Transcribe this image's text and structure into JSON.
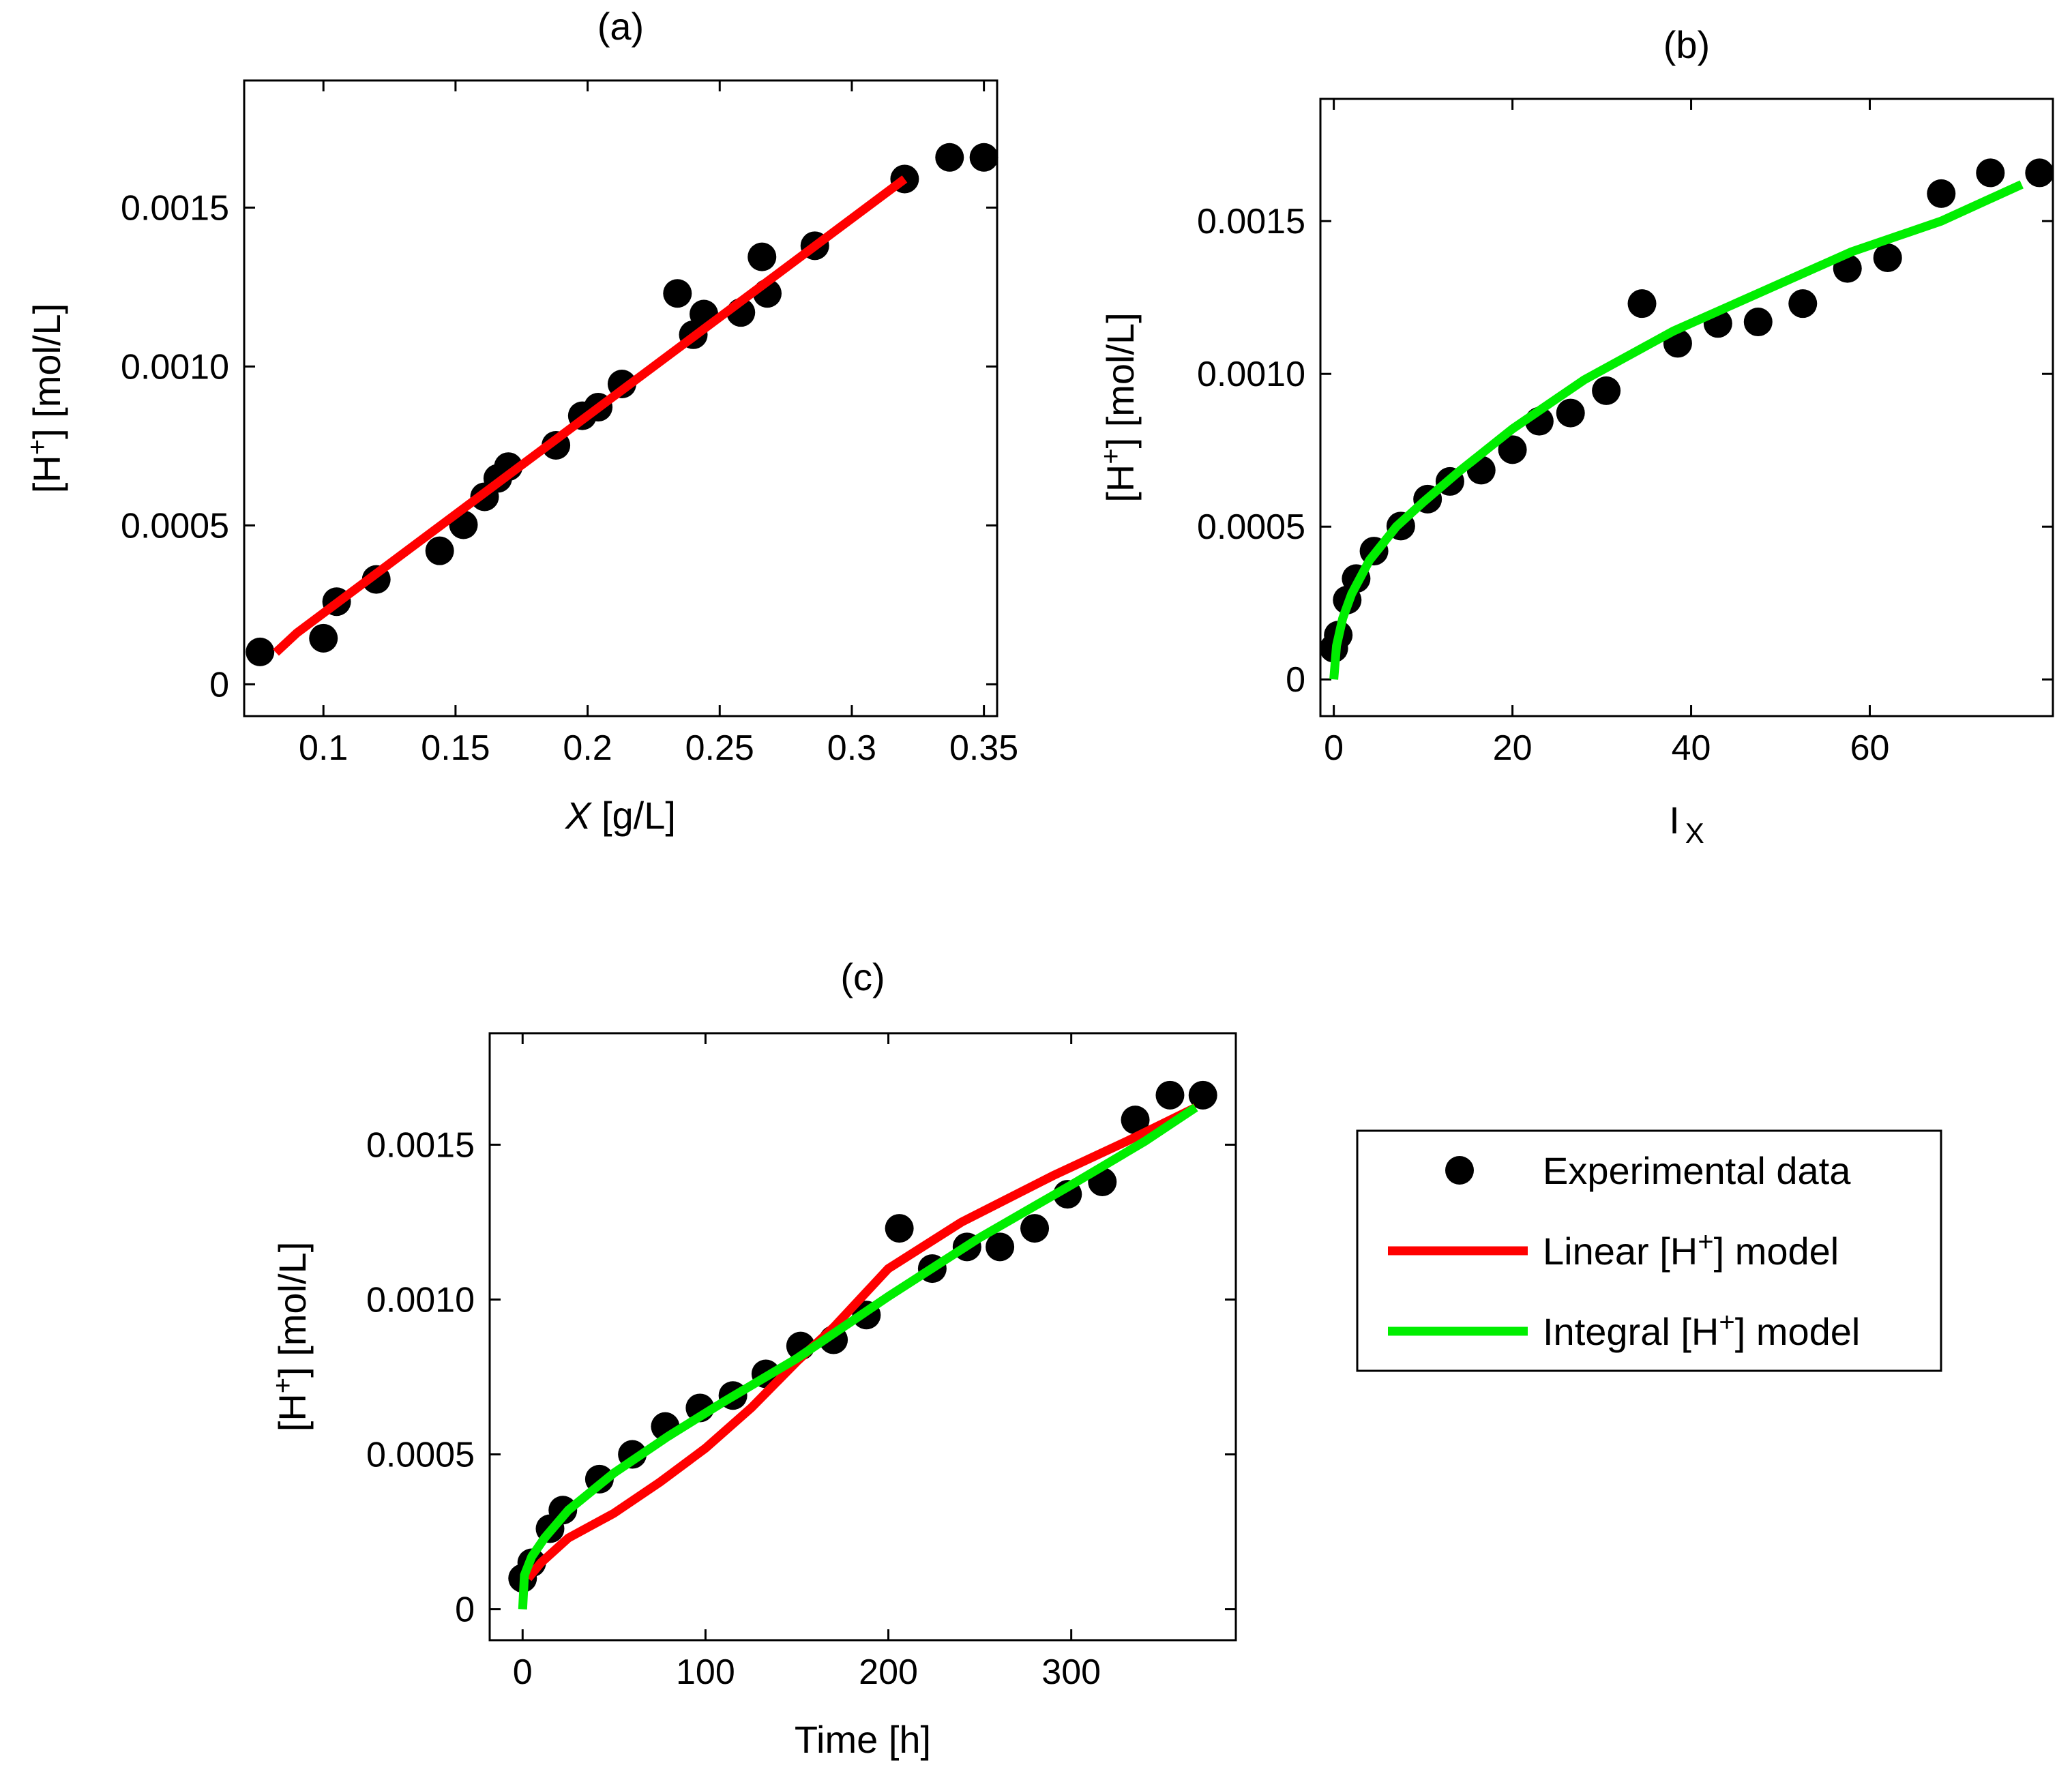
{
  "chart_data": [
    {
      "id": "a",
      "type": "scatter",
      "title": "(a)",
      "xlabel": "X [g/L]",
      "xlabel_main": "X",
      "xlabel_unit": "[g/L]",
      "ylabel": "[H+] [mol/L]",
      "xlim": [
        0.07,
        0.355
      ],
      "ylim": [
        -0.0001,
        0.0019
      ],
      "xticks": [
        0.1,
        0.15,
        0.2,
        0.25,
        0.3,
        0.35
      ],
      "xtick_labels": [
        "0.1",
        "0.15",
        "0.2",
        "0.25",
        "0.3",
        "0.35"
      ],
      "yticks": [
        0,
        0.0005,
        0.001,
        0.0015
      ],
      "ytick_labels": [
        "0",
        "0.0005",
        "0.0010",
        "0.0015"
      ],
      "scatter": {
        "name": "Experimental data",
        "points": [
          [
            0.076,
            0.000102
          ],
          [
            0.1,
            0.000145
          ],
          [
            0.105,
            0.00026
          ],
          [
            0.12,
            0.00033
          ],
          [
            0.144,
            0.00042
          ],
          [
            0.153,
            0.000502
          ],
          [
            0.161,
            0.00059
          ],
          [
            0.166,
            0.000648
          ],
          [
            0.17,
            0.000685
          ],
          [
            0.188,
            0.000752
          ],
          [
            0.198,
            0.000845
          ],
          [
            0.204,
            0.000872
          ],
          [
            0.213,
            0.000945
          ],
          [
            0.234,
            0.00123
          ],
          [
            0.24,
            0.0011
          ],
          [
            0.244,
            0.001165
          ],
          [
            0.258,
            0.00117
          ],
          [
            0.266,
            0.001345
          ],
          [
            0.268,
            0.00123
          ],
          [
            0.286,
            0.00138
          ],
          [
            0.32,
            0.00159
          ],
          [
            0.337,
            0.001658
          ],
          [
            0.35,
            0.001658
          ]
        ]
      },
      "series": [
        {
          "name": "Linear [H+] model",
          "color": "#ff0000",
          "points": [
            [
              0.082,
              0.0001
            ],
            [
              0.09,
              0.000162
            ],
            [
              0.32,
              0.00159
            ]
          ]
        }
      ]
    },
    {
      "id": "b",
      "type": "scatter",
      "title": "(b)",
      "xlabel": "I X",
      "xlabel_main": "I",
      "xlabel_sub": "X",
      "ylabel": "[H+] [mol/L]",
      "xlim": [
        -1.5,
        80.5
      ],
      "ylim": [
        -0.00012,
        0.0019
      ],
      "xticks": [
        0,
        20,
        40,
        60
      ],
      "xtick_labels": [
        "0",
        "20",
        "40",
        "60"
      ],
      "yticks": [
        0,
        0.0005,
        0.001,
        0.0015
      ],
      "ytick_labels": [
        "0",
        "0.0005",
        "0.0010",
        "0.0015"
      ],
      "scatter": {
        "name": "Experimental data",
        "points": [
          [
            0,
            0.000102
          ],
          [
            0.5,
            0.000145
          ],
          [
            1.5,
            0.00026
          ],
          [
            2.5,
            0.00033
          ],
          [
            4.5,
            0.00042
          ],
          [
            7.5,
            0.000502
          ],
          [
            10.5,
            0.00059
          ],
          [
            13,
            0.000648
          ],
          [
            16.5,
            0.000685
          ],
          [
            20,
            0.000752
          ],
          [
            23,
            0.000845
          ],
          [
            26.5,
            0.000872
          ],
          [
            30.5,
            0.000945
          ],
          [
            34.5,
            0.00123
          ],
          [
            38.5,
            0.0011
          ],
          [
            43,
            0.001165
          ],
          [
            47.5,
            0.00117
          ],
          [
            52.5,
            0.00123
          ],
          [
            57.5,
            0.001345
          ],
          [
            62,
            0.00138
          ],
          [
            68,
            0.00159
          ],
          [
            73.5,
            0.001658
          ],
          [
            79,
            0.001658
          ]
        ]
      },
      "series": [
        {
          "name": "Integral [H+] model",
          "color": "#00ee00",
          "points": [
            [
              0,
              0
            ],
            [
              0.3,
              0.00011
            ],
            [
              1,
              0.0002
            ],
            [
              2,
              0.00028
            ],
            [
              4,
              0.00039
            ],
            [
              7,
              0.0005
            ],
            [
              10,
              0.00058
            ],
            [
              14,
              0.00068
            ],
            [
              20,
              0.00082
            ],
            [
              28,
              0.00098
            ],
            [
              38,
              0.00114
            ],
            [
              48,
              0.00127
            ],
            [
              58,
              0.0014
            ],
            [
              68,
              0.0015
            ],
            [
              77,
              0.00162
            ]
          ]
        }
      ]
    },
    {
      "id": "c",
      "type": "scatter",
      "title": "(c)",
      "xlabel": "Time [h]",
      "ylabel": "[H+] [mol/L]",
      "xlim": [
        -18,
        390
      ],
      "ylim": [
        -0.0001,
        0.00186
      ],
      "xticks": [
        0,
        100,
        200,
        300
      ],
      "xtick_labels": [
        "0",
        "100",
        "200",
        "300"
      ],
      "yticks": [
        0,
        0.0005,
        0.001,
        0.0015
      ],
      "ytick_labels": [
        "0",
        "0.0005",
        "0.0010",
        "0.0015"
      ],
      "scatter": {
        "name": "Experimental data",
        "points": [
          [
            0,
            0.0001
          ],
          [
            5,
            0.00015
          ],
          [
            15,
            0.00026
          ],
          [
            22,
            0.00032
          ],
          [
            42,
            0.00042
          ],
          [
            60,
            0.0005
          ],
          [
            78,
            0.00059
          ],
          [
            97,
            0.00065
          ],
          [
            115,
            0.00069
          ],
          [
            133,
            0.00076
          ],
          [
            152,
            0.00085
          ],
          [
            170,
            0.00087
          ],
          [
            188,
            0.00095
          ],
          [
            206,
            0.00123
          ],
          [
            224,
            0.0011
          ],
          [
            243,
            0.00117
          ],
          [
            261,
            0.00117
          ],
          [
            280,
            0.00123
          ],
          [
            298,
            0.00134
          ],
          [
            317,
            0.00138
          ],
          [
            335,
            0.00158
          ],
          [
            354,
            0.00166
          ],
          [
            372,
            0.00166
          ]
        ]
      },
      "series": [
        {
          "name": "Linear [H+] model",
          "color": "#ff0000",
          "points": [
            [
              3,
              0.0001
            ],
            [
              10,
              0.00015
            ],
            [
              25,
              0.00023
            ],
            [
              50,
              0.00031
            ],
            [
              75,
              0.00041
            ],
            [
              100,
              0.00052
            ],
            [
              125,
              0.00065
            ],
            [
              150,
              0.0008
            ],
            [
              170,
              0.00091
            ],
            [
              200,
              0.0011
            ],
            [
              240,
              0.00125
            ],
            [
              290,
              0.0014
            ],
            [
              330,
              0.00151
            ],
            [
              368,
              0.00162
            ]
          ]
        },
        {
          "name": "Integral [H+] model",
          "color": "#00ee00",
          "points": [
            [
              0,
              0
            ],
            [
              1,
              0.00011
            ],
            [
              5,
              0.00017
            ],
            [
              12,
              0.00023
            ],
            [
              25,
              0.00032
            ],
            [
              50,
              0.00044
            ],
            [
              80,
              0.00056
            ],
            [
              110,
              0.00067
            ],
            [
              150,
              0.00081
            ],
            [
              200,
              0.00101
            ],
            [
              250,
              0.0012
            ],
            [
              300,
              0.00137
            ],
            [
              340,
              0.00151
            ],
            [
              368,
              0.00162
            ]
          ]
        }
      ]
    }
  ],
  "legend": {
    "items": [
      {
        "name": "Experimental data",
        "marker": "dot"
      },
      {
        "name": "Linear [H+] model",
        "prefix": "Linear [H",
        "sup": "+",
        "suffix": "] model",
        "color": "#ff0000"
      },
      {
        "name": "Integral [H+] model",
        "prefix": "Integral [H",
        "sup": "+",
        "suffix": "] model",
        "color": "#00ee00"
      }
    ]
  },
  "ylabel_parts": {
    "prefix": "[H",
    "sup": "+",
    "suffix": "] [mol/L]"
  }
}
